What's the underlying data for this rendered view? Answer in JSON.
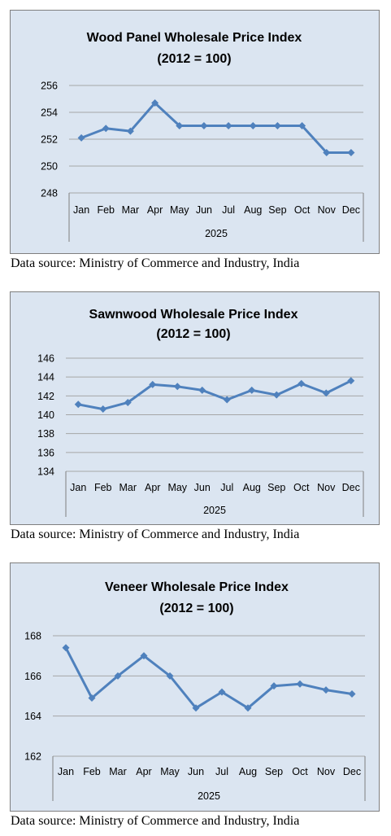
{
  "source_note": "Data source: Ministry of Commerce and Industry, India",
  "chart_data": [
    {
      "type": "line",
      "title": "Wood Panel Wholesale Price Index",
      "subtitle": "(2012 = 100)",
      "categories": [
        "Jan",
        "Feb",
        "Mar",
        "Apr",
        "May",
        "Jun",
        "Jul",
        "Aug",
        "Sep",
        "Oct",
        "Nov",
        "Dec"
      ],
      "category_group": "2025",
      "values": [
        252.1,
        252.8,
        252.6,
        254.7,
        253.0,
        253.0,
        253.0,
        253.0,
        253.0,
        253.0,
        251.0,
        251.0
      ],
      "ylim": [
        248,
        256
      ],
      "yticks": [
        "248",
        "250",
        "252",
        "254",
        "256"
      ],
      "grid": true,
      "legend": "none",
      "color": "#4f81bd"
    },
    {
      "type": "line",
      "title": "Sawnwood  Wholesale Price Index",
      "subtitle": "(2012 = 100)",
      "categories": [
        "Jan",
        "Feb",
        "Mar",
        "Apr",
        "May",
        "Jun",
        "Jul",
        "Aug",
        "Sep",
        "Oct",
        "Nov",
        "Dec"
      ],
      "category_group": "2025",
      "values": [
        141.1,
        140.6,
        141.3,
        143.2,
        143.0,
        142.6,
        141.6,
        142.6,
        142.1,
        143.3,
        142.3,
        143.6
      ],
      "ylim": [
        134,
        146
      ],
      "yticks": [
        "134",
        "136",
        "138",
        "140",
        "142",
        "144",
        "146"
      ],
      "grid": true,
      "legend": "none",
      "color": "#4f81bd"
    },
    {
      "type": "line",
      "title": "Veneer Wholesale Price Index",
      "subtitle": "(2012 = 100)",
      "categories": [
        "Jan",
        "Feb",
        "Mar",
        "Apr",
        "May",
        "Jun",
        "Jul",
        "Aug",
        "Sep",
        "Oct",
        "Nov",
        "Dec"
      ],
      "category_group": "2025",
      "values": [
        167.4,
        164.9,
        166.0,
        167.0,
        166.0,
        164.4,
        165.2,
        164.4,
        165.5,
        165.6,
        165.3,
        165.1
      ],
      "ylim": [
        162,
        168
      ],
      "yticks": [
        "162",
        "164",
        "166",
        "168"
      ],
      "grid": true,
      "legend": "none",
      "color": "#4f81bd"
    }
  ]
}
